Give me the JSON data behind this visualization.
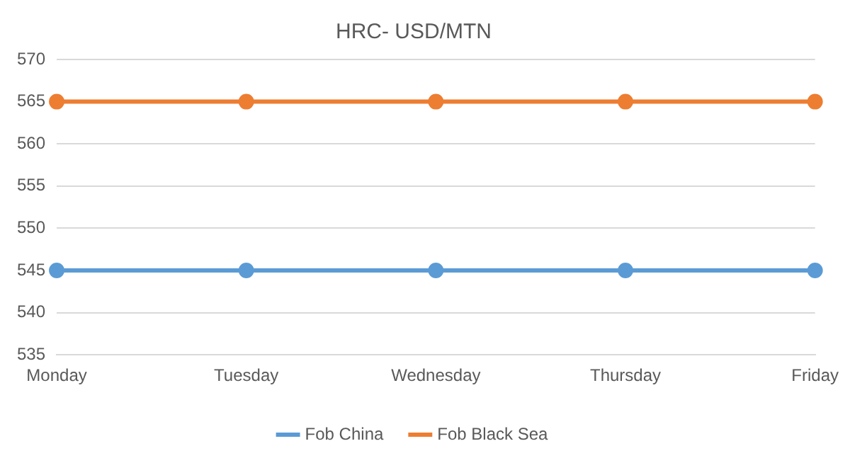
{
  "chart_data": {
    "type": "line",
    "title": "HRC- USD/MTN",
    "categories": [
      "Monday",
      "Tuesday",
      "Wednesday",
      "Thursday",
      "Friday"
    ],
    "series": [
      {
        "name": "Fob China",
        "color": "#5b9bd5",
        "values": [
          545,
          545,
          545,
          545,
          545
        ]
      },
      {
        "name": "Fob Black Sea",
        "color": "#ed7d31",
        "values": [
          565,
          565,
          565,
          565,
          565
        ]
      }
    ],
    "ylim": [
      535,
      570
    ],
    "yticks": [
      535,
      540,
      545,
      550,
      555,
      560,
      565,
      570
    ],
    "grid": "y",
    "legend": "bottom",
    "marker": "circle"
  }
}
